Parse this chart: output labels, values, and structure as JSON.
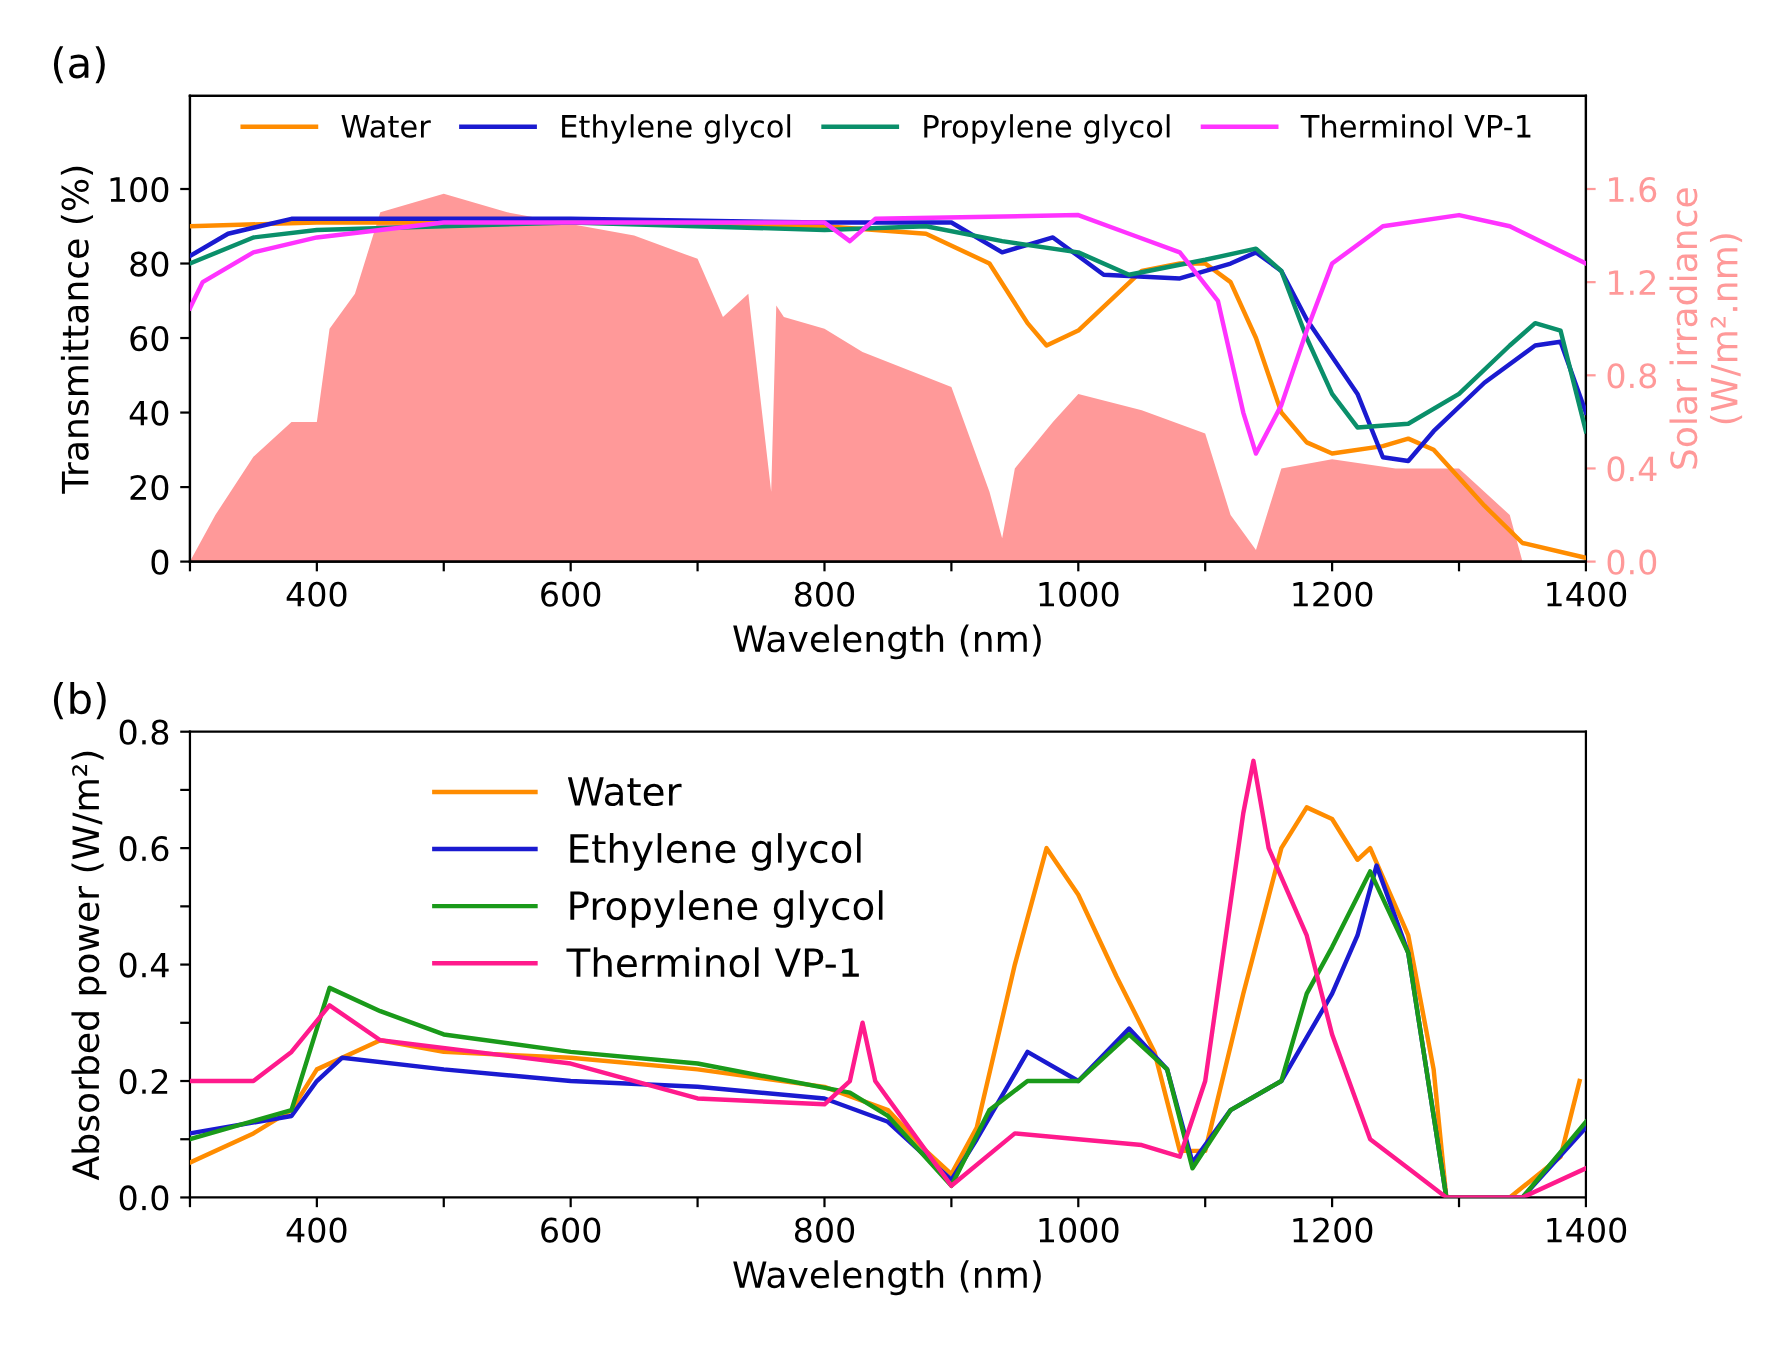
{
  "chart_data": [
    {
      "type": "line",
      "xlabel": "Wavelength (nm)",
      "ylabel": "Transmittance (%)",
      "y2label": "Solar irradiance\n(W/m².nm)",
      "annotations": [
        "(a)"
      ],
      "legend": "top",
      "grid": false,
      "xlim": [
        300,
        1400
      ],
      "xticks": [
        {
          "value": 300,
          "label": null
        },
        400,
        {
          "value": 500,
          "label": null
        },
        600,
        {
          "value": 700,
          "label": null
        },
        800,
        {
          "value": 900,
          "label": null
        },
        1000,
        {
          "value": 1100,
          "label": null
        },
        1200,
        {
          "value": 1300,
          "label": null
        },
        1400
      ],
      "ylim": [
        0,
        125
      ],
      "yticks": [
        0,
        20,
        40,
        60,
        80,
        100
      ],
      "y2lim": [
        0,
        2.0
      ],
      "y2ticks": [
        {
          "value": 0,
          "label": "0.0"
        },
        {
          "value": 0.4,
          "label": "0.4"
        },
        {
          "value": 0.8,
          "label": "0.8"
        },
        {
          "value": 1.2,
          "label": "1.2"
        },
        {
          "value": 1.6,
          "label": "1.6"
        }
      ],
      "series": [
        {
          "type": "area",
          "axis": "y2",
          "color": "#ff9999",
          "x": [
            300,
            320,
            350,
            380,
            400,
            410,
            430,
            450,
            500,
            550,
            600,
            650,
            700,
            720,
            740,
            758,
            762,
            768,
            800,
            830,
            900,
            930,
            940,
            950,
            980,
            1000,
            1050,
            1100,
            1120,
            1140,
            1160,
            1200,
            1250,
            1300,
            1340,
            1350
          ],
          "values": [
            0,
            0.2,
            0.45,
            0.6,
            0.6,
            1.0,
            1.15,
            1.5,
            1.58,
            1.5,
            1.45,
            1.4,
            1.3,
            1.05,
            1.15,
            0.3,
            1.1,
            1.05,
            1.0,
            0.9,
            0.75,
            0.3,
            0.1,
            0.4,
            0.6,
            0.72,
            0.65,
            0.55,
            0.2,
            0.05,
            0.4,
            0.44,
            0.4,
            0.4,
            0.2,
            0
          ]
        },
        {
          "name": "Water",
          "color": "#ff8c00",
          "x": [
            300,
            400,
            600,
            800,
            880,
            930,
            960,
            975,
            1000,
            1050,
            1080,
            1100,
            1120,
            1140,
            1160,
            1180,
            1200,
            1240,
            1260,
            1280,
            1320,
            1350,
            1400
          ],
          "values": [
            90,
            91,
            91,
            90,
            88,
            80,
            64,
            58,
            62,
            78,
            80,
            80,
            75,
            60,
            40,
            32,
            29,
            31,
            33,
            30,
            15,
            5,
            1
          ]
        },
        {
          "name": "Ethylene glycol",
          "color": "#1a1ad0",
          "x": [
            300,
            330,
            380,
            600,
            800,
            900,
            940,
            960,
            980,
            1000,
            1020,
            1080,
            1120,
            1140,
            1160,
            1180,
            1200,
            1220,
            1240,
            1260,
            1280,
            1320,
            1360,
            1380,
            1400
          ],
          "values": [
            82,
            88,
            92,
            92,
            91,
            91,
            83,
            85,
            87,
            82,
            77,
            76,
            80,
            83,
            78,
            65,
            55,
            45,
            28,
            27,
            35,
            48,
            58,
            59,
            40
          ]
        },
        {
          "name": "Propylene glycol",
          "color": "#0a8f6a",
          "x": [
            300,
            350,
            400,
            600,
            800,
            880,
            940,
            1000,
            1040,
            1100,
            1140,
            1160,
            1180,
            1200,
            1220,
            1260,
            1300,
            1340,
            1360,
            1380,
            1400
          ],
          "values": [
            80,
            87,
            89,
            91,
            89,
            90,
            86,
            83,
            77,
            81,
            84,
            78,
            60,
            45,
            36,
            37,
            45,
            58,
            64,
            62,
            35
          ]
        },
        {
          "name": "Therminol VP-1",
          "color": "#ff33ff",
          "x": [
            300,
            310,
            350,
            400,
            500,
            800,
            820,
            840,
            1000,
            1040,
            1080,
            1110,
            1130,
            1140,
            1160,
            1180,
            1200,
            1240,
            1300,
            1340,
            1400
          ],
          "values": [
            68,
            75,
            83,
            87,
            91,
            91,
            86,
            92,
            93,
            88,
            83,
            70,
            40,
            29,
            42,
            62,
            80,
            90,
            93,
            90,
            80
          ]
        }
      ]
    },
    {
      "type": "line",
      "xlabel": "Wavelength (nm)",
      "ylabel": "Absorbed power (W/m²)",
      "annotations": [
        "(b)"
      ],
      "legend": "top left",
      "grid": false,
      "xlim": [
        300,
        1400
      ],
      "xticks": [
        {
          "value": 300,
          "label": null
        },
        400,
        {
          "value": 500,
          "label": null
        },
        600,
        {
          "value": 700,
          "label": null
        },
        800,
        {
          "value": 900,
          "label": null
        },
        1000,
        {
          "value": 1100,
          "label": null
        },
        1200,
        {
          "value": 1300,
          "label": null
        },
        1400
      ],
      "ylim": [
        0,
        0.8
      ],
      "yticks": [
        {
          "value": 0,
          "label": "0.0"
        },
        {
          "value": 0.1,
          "label": null
        },
        {
          "value": 0.2,
          "label": "0.2"
        },
        {
          "value": 0.3,
          "label": null
        },
        {
          "value": 0.4,
          "label": "0.4"
        },
        {
          "value": 0.5,
          "label": null
        },
        {
          "value": 0.6,
          "label": "0.6"
        },
        {
          "value": 0.7,
          "label": null
        },
        {
          "value": 0.8,
          "label": "0.8"
        }
      ],
      "series": [
        {
          "name": "Water",
          "color": "#ff8c00",
          "x": [
            300,
            350,
            380,
            400,
            450,
            500,
            600,
            700,
            800,
            850,
            880,
            900,
            920,
            950,
            975,
            1000,
            1030,
            1060,
            1080,
            1100,
            1130,
            1160,
            1180,
            1200,
            1220,
            1230,
            1260,
            1280,
            1290,
            1340,
            1380,
            1395
          ],
          "values": [
            0.06,
            0.11,
            0.15,
            0.22,
            0.27,
            0.25,
            0.24,
            0.22,
            0.19,
            0.15,
            0.08,
            0.04,
            0.12,
            0.4,
            0.6,
            0.52,
            0.38,
            0.25,
            0.08,
            0.08,
            0.35,
            0.6,
            0.67,
            0.65,
            0.58,
            0.6,
            0.45,
            0.22,
            0.0,
            0.0,
            0.07,
            0.2
          ]
        },
        {
          "name": "Ethylene glycol",
          "color": "#1a1ad0",
          "x": [
            300,
            380,
            400,
            420,
            500,
            600,
            700,
            800,
            850,
            900,
            920,
            960,
            1000,
            1040,
            1070,
            1090,
            1120,
            1160,
            1200,
            1220,
            1235,
            1260,
            1290,
            1350,
            1400
          ],
          "values": [
            0.11,
            0.14,
            0.2,
            0.24,
            0.22,
            0.2,
            0.19,
            0.17,
            0.13,
            0.03,
            0.1,
            0.25,
            0.2,
            0.29,
            0.22,
            0.06,
            0.15,
            0.2,
            0.35,
            0.45,
            0.57,
            0.42,
            0.0,
            0.0,
            0.12
          ]
        },
        {
          "name": "Propylene glycol",
          "color": "#1a9a1a",
          "x": [
            300,
            380,
            410,
            450,
            500,
            600,
            700,
            820,
            850,
            900,
            930,
            960,
            1000,
            1040,
            1070,
            1090,
            1120,
            1160,
            1180,
            1200,
            1230,
            1260,
            1290,
            1350,
            1400
          ],
          "values": [
            0.1,
            0.15,
            0.36,
            0.32,
            0.28,
            0.25,
            0.23,
            0.18,
            0.14,
            0.02,
            0.15,
            0.2,
            0.2,
            0.28,
            0.22,
            0.05,
            0.15,
            0.2,
            0.35,
            0.43,
            0.56,
            0.42,
            0.0,
            0.0,
            0.13
          ]
        },
        {
          "name": "Therminol VP-1",
          "color": "#ff1a8c",
          "x": [
            300,
            350,
            380,
            410,
            450,
            600,
            700,
            800,
            820,
            830,
            840,
            880,
            900,
            950,
            1000,
            1050,
            1080,
            1100,
            1130,
            1138,
            1150,
            1180,
            1200,
            1230,
            1260,
            1290,
            1350,
            1400
          ],
          "values": [
            0.2,
            0.2,
            0.25,
            0.33,
            0.27,
            0.23,
            0.17,
            0.16,
            0.2,
            0.3,
            0.2,
            0.08,
            0.02,
            0.11,
            0.1,
            0.09,
            0.07,
            0.2,
            0.66,
            0.75,
            0.6,
            0.45,
            0.28,
            0.1,
            0.05,
            0.0,
            0.0,
            0.05
          ]
        }
      ]
    }
  ]
}
